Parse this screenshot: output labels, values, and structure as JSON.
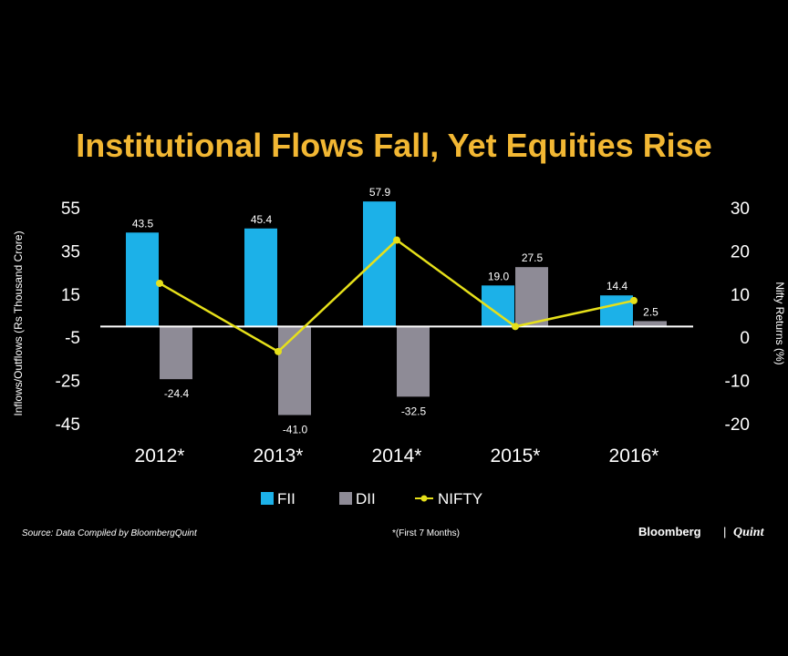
{
  "colors": {
    "background": "#000000",
    "title": "#F2B733",
    "fii": "#1CB1E8",
    "dii": "#8E8B96",
    "nifty": "#E6E01A",
    "text": "#FFFFFF"
  },
  "chart_data": {
    "type": "bar",
    "title": "Institutional Flows Fall, Yet Equities Rise",
    "categories": [
      "2012*",
      "2013*",
      "2014*",
      "2015*",
      "2016*"
    ],
    "ylabel": "Inflows/Outflows (Rs Thousand Crore)",
    "y2label": "Nifty Returns (%)",
    "ylim": [
      -45,
      55
    ],
    "y_ticks": [
      "55",
      "35",
      "15",
      "-5",
      "-25",
      "-45"
    ],
    "y2lim": [
      -20,
      30
    ],
    "y2_ticks": [
      "30",
      "20",
      "10",
      "0",
      "-10",
      "-20"
    ],
    "series": [
      {
        "name": "FII",
        "kind": "bar",
        "values": [
          43.5,
          45.4,
          57.9,
          19.0,
          14.4
        ],
        "labels": [
          "43.5",
          "45.4",
          "57.9",
          "19.0",
          "14.4"
        ]
      },
      {
        "name": "DII",
        "kind": "bar",
        "values": [
          -24.4,
          -41.0,
          -32.5,
          27.5,
          2.5
        ],
        "labels": [
          "-24.4",
          "-41.0",
          "-32.5",
          "27.5",
          "2.5"
        ]
      },
      {
        "name": "NIFTY",
        "kind": "line",
        "axis": "right",
        "values": [
          12.5,
          -3.3,
          22.5,
          2.5,
          8.5
        ]
      }
    ],
    "legend": "bottom",
    "grid": false
  },
  "footer": {
    "source": "Source: Data Compiled by BloombergQuint",
    "note": "*(First 7 Months)",
    "brand_left": "Bloomberg",
    "brand_sep": "|",
    "brand_right": "Quint"
  }
}
